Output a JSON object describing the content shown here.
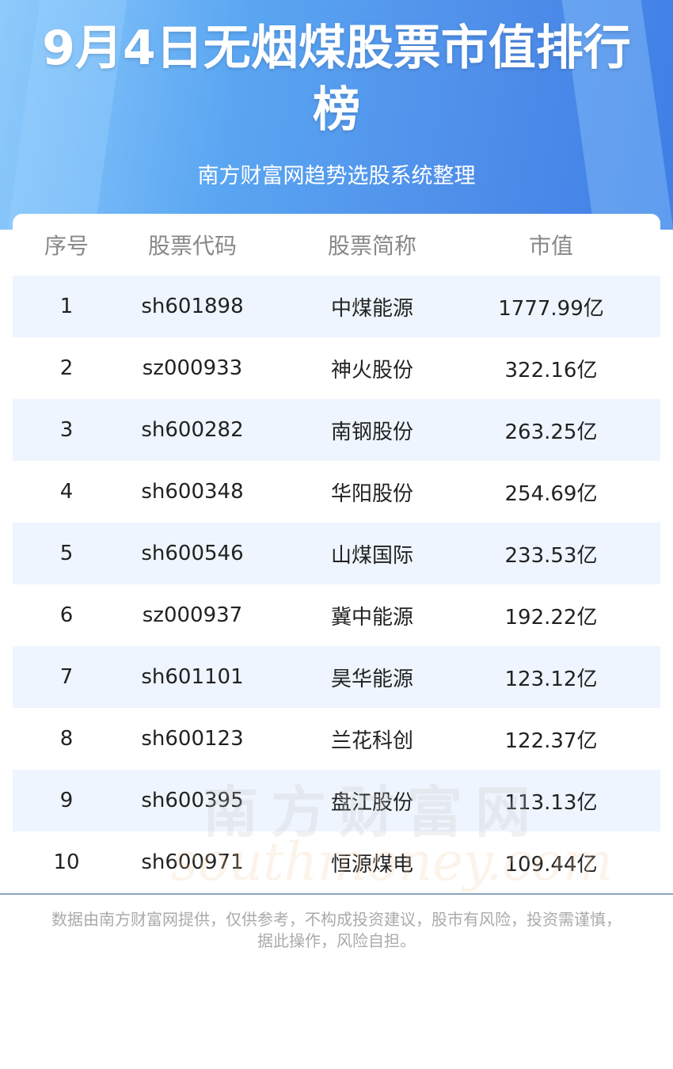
{
  "header": {
    "title": "9月4日无烟煤股票市值排行榜",
    "subtitle": "南方财富网趋势选股系统整理"
  },
  "table": {
    "columns": [
      "序号",
      "股票代码",
      "股票简称",
      "市值"
    ],
    "rows": [
      [
        "1",
        "sh601898",
        "中煤能源",
        "1777.99亿"
      ],
      [
        "2",
        "sz000933",
        "神火股份",
        "322.16亿"
      ],
      [
        "3",
        "sh600282",
        "南钢股份",
        "263.25亿"
      ],
      [
        "4",
        "sh600348",
        "华阳股份",
        "254.69亿"
      ],
      [
        "5",
        "sh600546",
        "山煤国际",
        "233.53亿"
      ],
      [
        "6",
        "sz000937",
        "冀中能源",
        "192.22亿"
      ],
      [
        "7",
        "sh601101",
        "昊华能源",
        "123.12亿"
      ],
      [
        "8",
        "sh600123",
        "兰花科创",
        "122.37亿"
      ],
      [
        "9",
        "sh600395",
        "盘江股份",
        "113.13亿"
      ],
      [
        "10",
        "sh600971",
        "恒源煤电",
        "109.44亿"
      ]
    ]
  },
  "watermark": {
    "cn": "南方财富网",
    "en": "southmoney.com"
  },
  "footer": {
    "disclaimer": "数据由南方财富网提供，仅供参考，不构成投资建议，股市有风险，投资需谨慎，据此操作，风险自担。"
  },
  "colors": {
    "header_gradient_start": "#8fcbfb",
    "header_gradient_end": "#3f7fe6",
    "row_shade": "#eef5fe",
    "divider": "#8aa4bf"
  }
}
